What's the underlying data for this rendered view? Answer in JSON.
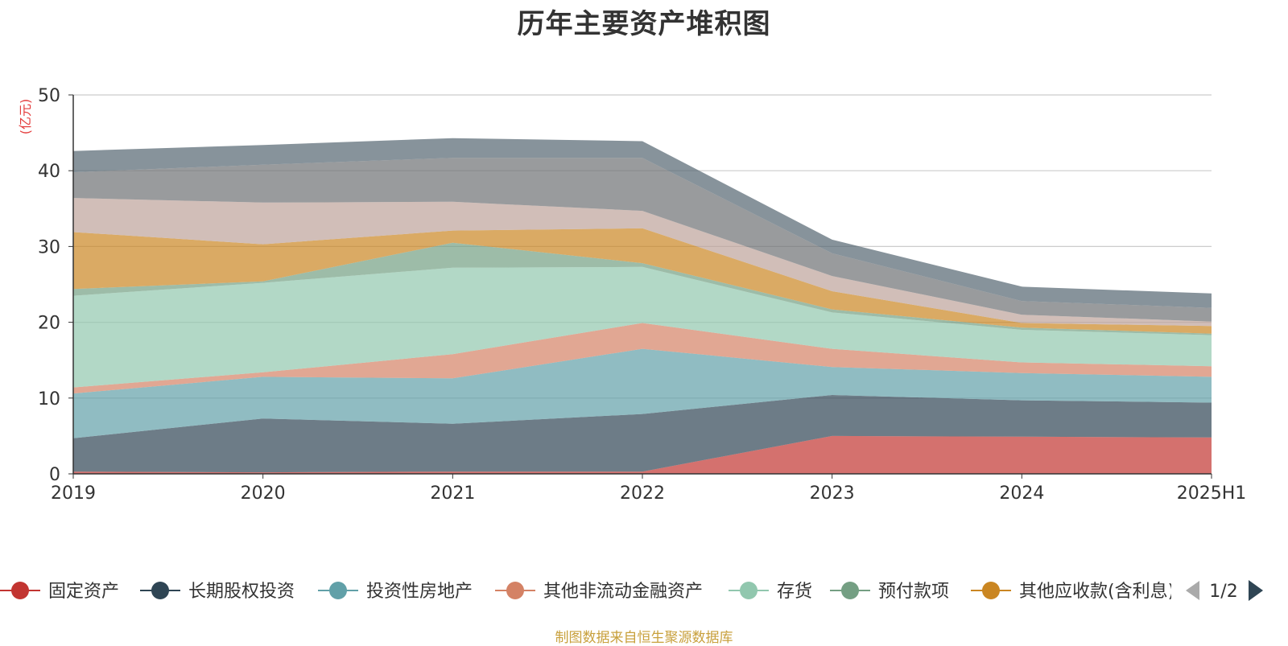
{
  "chart_data": {
    "type": "area",
    "title": "历年主要资产堆积图",
    "ylabel": "(亿元)",
    "xlabel": "",
    "ylim": [
      0,
      50
    ],
    "yticks": [
      0,
      10,
      20,
      30,
      40,
      50
    ],
    "categories": [
      "2019",
      "2020",
      "2021",
      "2022",
      "2023",
      "2024",
      "2025H1"
    ],
    "stacked": true,
    "grid": true,
    "legend_position": "bottom",
    "series": [
      {
        "name": "固定资产",
        "color": "#c23531",
        "values": [
          0.3,
          0.2,
          0.3,
          0.3,
          5.0,
          4.9,
          4.8
        ]
      },
      {
        "name": "长期股权投资",
        "color": "#2f4554",
        "values": [
          4.4,
          7.1,
          6.3,
          7.6,
          5.4,
          4.8,
          4.6
        ]
      },
      {
        "name": "投资性房地产",
        "color": "#61a0a8",
        "values": [
          5.9,
          5.5,
          6.0,
          8.6,
          3.7,
          3.6,
          3.4
        ]
      },
      {
        "name": "其他非流动金融资产",
        "color": "#d48265",
        "values": [
          0.8,
          0.6,
          3.2,
          3.4,
          2.4,
          1.4,
          1.4
        ]
      },
      {
        "name": "存货",
        "color": "#91c7ae",
        "values": [
          12.1,
          11.8,
          11.4,
          7.4,
          4.8,
          4.3,
          4.1
        ]
      },
      {
        "name": "预付款项",
        "color": "#749f83",
        "values": [
          0.9,
          0.2,
          3.3,
          0.5,
          0.4,
          0.3,
          0.2
        ]
      },
      {
        "name": "其他应收款(含利息)",
        "color": "#ca8622",
        "values": [
          7.5,
          4.9,
          1.6,
          4.6,
          2.4,
          0.6,
          1.0
        ]
      },
      {
        "name": "",
        "color": "#bda29a",
        "values": [
          4.5,
          5.5,
          3.8,
          2.3,
          2.0,
          1.1,
          0.6
        ]
      },
      {
        "name": "",
        "color": "#6e7074",
        "values": [
          3.4,
          5.0,
          5.8,
          7.0,
          3.0,
          1.8,
          1.8
        ]
      },
      {
        "name": "",
        "color": "#546570",
        "values": [
          2.8,
          2.6,
          2.6,
          2.2,
          1.8,
          1.9,
          1.9
        ]
      }
    ]
  },
  "legend": {
    "page_indicator": "1/2",
    "visible_count": 7
  },
  "source_note": "制图数据来自恒生聚源数据库"
}
